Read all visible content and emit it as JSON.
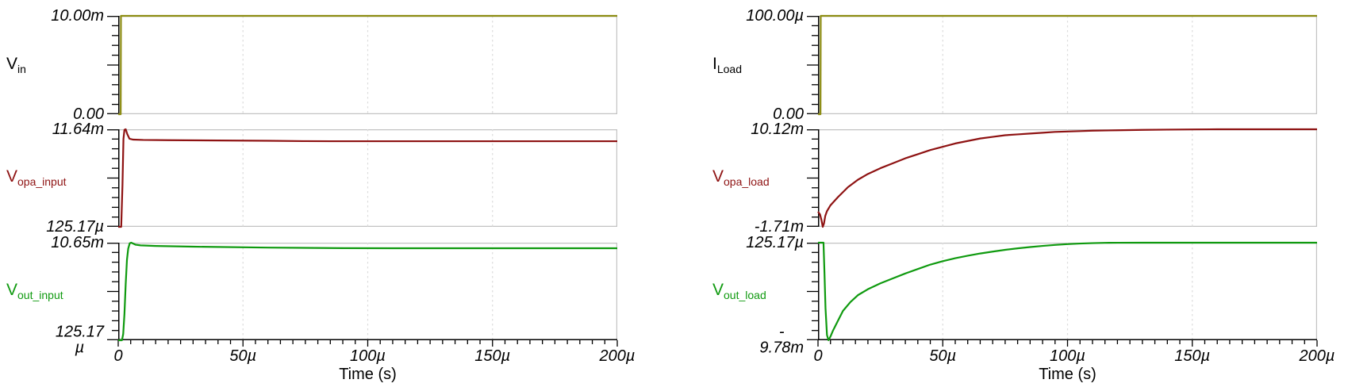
{
  "page": {
    "background": "#ffffff"
  },
  "colors": {
    "border_gray": "#c2c2c2",
    "grid_gray": "#dcdcdc",
    "axis_black": "#000000",
    "trace_olive": "#8c8c12",
    "trace_dark_red": "#8e1212",
    "trace_green": "#0f9a0f"
  },
  "axis": {
    "xlabel": "Time (s)",
    "x_tick_labels": [
      "0",
      "50µ",
      "100µ",
      "150µ",
      "200µ"
    ],
    "xlim": [
      0,
      0.0002
    ],
    "grid": true,
    "legend": "none"
  },
  "chart_data": [
    {
      "id": "vin",
      "type": "line",
      "column": "left",
      "row": 0,
      "signal": {
        "base": "V",
        "sub": "in"
      },
      "label_color": "#000000",
      "trace_color": "#8c8c12",
      "y_top_label": "10.00m",
      "y_bottom_label": "0.00",
      "ylim": [
        0,
        0.01
      ],
      "xlim": [
        0,
        0.0002
      ],
      "xlabel": "Time (s)",
      "points": [
        [
          0,
          0
        ],
        [
          1e-06,
          0
        ],
        [
          1.1e-06,
          0.01
        ],
        [
          0.0002,
          0.01
        ]
      ]
    },
    {
      "id": "vopa-input",
      "type": "line",
      "column": "left",
      "row": 1,
      "signal": {
        "base": "V",
        "sub": "opa_input"
      },
      "label_color": "#8e1212",
      "trace_color": "#8e1212",
      "y_top_label": "11.64m",
      "y_bottom_label": "125.17µ",
      "ylim": [
        0.00012517,
        0.01164
      ],
      "xlim": [
        0,
        0.0002
      ],
      "xlabel": "Time (s)",
      "points": [
        [
          0,
          0.00012517
        ],
        [
          1.2e-06,
          0.00012517
        ],
        [
          1.7e-06,
          0.005
        ],
        [
          2.1e-06,
          0.0105
        ],
        [
          2.5e-06,
          0.01158
        ],
        [
          3e-06,
          0.01164
        ],
        [
          3.6e-06,
          0.0111
        ],
        [
          4.5e-06,
          0.01052
        ],
        [
          6e-06,
          0.01042
        ],
        [
          1e-05,
          0.01038
        ],
        [
          2e-05,
          0.01035
        ],
        [
          4e-05,
          0.01032
        ],
        [
          6e-05,
          0.01028
        ],
        [
          7.5e-05,
          0.01024
        ],
        [
          8.5e-05,
          0.01023
        ],
        [
          0.0002,
          0.01023
        ]
      ]
    },
    {
      "id": "vout-input",
      "type": "line",
      "column": "left",
      "row": 2,
      "signal": {
        "base": "V",
        "sub": "out_input"
      },
      "label_color": "#0f9a0f",
      "trace_color": "#0f9a0f",
      "y_top_label": "10.65m",
      "y_bottom_label": "125.17\nµ",
      "ylim": [
        0.00012517,
        0.01065
      ],
      "xlim": [
        0,
        0.0002
      ],
      "xlabel": "Time (s)",
      "points": [
        [
          0,
          0.00012517
        ],
        [
          1.5e-06,
          0.00012517
        ],
        [
          2e-06,
          0.0008
        ],
        [
          2.5e-06,
          0.003
        ],
        [
          3e-06,
          0.0062
        ],
        [
          3.5e-06,
          0.0088
        ],
        [
          4e-06,
          0.01
        ],
        [
          4.6e-06,
          0.01058
        ],
        [
          5.2e-06,
          0.01065
        ],
        [
          6e-06,
          0.01055
        ],
        [
          7e-06,
          0.01043
        ],
        [
          9e-06,
          0.01036
        ],
        [
          1.5e-05,
          0.0103
        ],
        [
          3e-05,
          0.01022
        ],
        [
          6e-05,
          0.01012
        ],
        [
          9e-05,
          0.01006
        ],
        [
          0.00011,
          0.01005
        ],
        [
          0.0002,
          0.01005
        ]
      ]
    },
    {
      "id": "iload",
      "type": "line",
      "column": "right",
      "row": 0,
      "signal": {
        "base": "I",
        "sub": "Load"
      },
      "label_color": "#000000",
      "trace_color": "#8c8c12",
      "y_top_label": "100.00µ",
      "y_bottom_label": "0.00",
      "ylim": [
        0,
        0.0001
      ],
      "xlim": [
        0,
        0.0002
      ],
      "xlabel": "Time (s)",
      "points": [
        [
          0,
          0
        ],
        [
          1e-06,
          0
        ],
        [
          1.1e-06,
          0.0001
        ],
        [
          0.0002,
          0.0001
        ]
      ]
    },
    {
      "id": "vopa-load",
      "type": "line",
      "column": "right",
      "row": 1,
      "signal": {
        "base": "V",
        "sub": "opa_load"
      },
      "label_color": "#8e1212",
      "trace_color": "#8e1212",
      "y_top_label": "10.12m",
      "y_bottom_label": "-1.71m",
      "ylim": [
        -0.00171,
        0.01012
      ],
      "xlim": [
        0,
        0.0002
      ],
      "xlabel": "Time (s)",
      "points": [
        [
          0,
          0.00013
        ],
        [
          8e-07,
          -0.0002
        ],
        [
          1.4e-06,
          -0.0009
        ],
        [
          1.9e-06,
          -0.00171
        ],
        [
          2.4e-06,
          -0.0013
        ],
        [
          2.9e-06,
          -0.0004
        ],
        [
          3.6e-06,
          0.0002
        ],
        [
          5e-06,
          0.0009
        ],
        [
          8e-06,
          0.0019
        ],
        [
          1.2e-05,
          0.0031
        ],
        [
          1.6e-05,
          0.004
        ],
        [
          2e-05,
          0.0047
        ],
        [
          2.5e-05,
          0.0054
        ],
        [
          3e-05,
          0.006
        ],
        [
          3.5e-05,
          0.0066
        ],
        [
          4e-05,
          0.0071
        ],
        [
          4.5e-05,
          0.0076
        ],
        [
          5e-05,
          0.008
        ],
        [
          5.5e-05,
          0.0084
        ],
        [
          6e-05,
          0.0087
        ],
        [
          6.5e-05,
          0.009
        ],
        [
          7e-05,
          0.0092
        ],
        [
          7.5e-05,
          0.0094
        ],
        [
          8e-05,
          0.0095
        ],
        [
          8.5e-05,
          0.0096
        ],
        [
          9e-05,
          0.0097
        ],
        [
          9.5e-05,
          0.0098
        ],
        [
          0.0001,
          0.00985
        ],
        [
          0.000105,
          0.0099
        ],
        [
          0.00011,
          0.00995
        ],
        [
          0.00012,
          0.01
        ],
        [
          0.00013,
          0.01005
        ],
        [
          0.00014,
          0.01008
        ],
        [
          0.00015,
          0.0101
        ],
        [
          0.00016,
          0.01012
        ],
        [
          0.0002,
          0.01012
        ]
      ]
    },
    {
      "id": "vout-load",
      "type": "line",
      "column": "right",
      "row": 2,
      "signal": {
        "base": "V",
        "sub": "out_load"
      },
      "label_color": "#0f9a0f",
      "trace_color": "#0f9a0f",
      "y_top_label": "125.17µ",
      "y_bottom_label": "-\n9.78m",
      "ylim": [
        -0.00978,
        0.00012517
      ],
      "xlim": [
        0,
        0.0002
      ],
      "xlabel": "Time (s)",
      "points": [
        [
          0,
          0.00012517
        ],
        [
          2.2e-06,
          0.00012517
        ],
        [
          2.6e-06,
          -0.003
        ],
        [
          3e-06,
          -0.0065
        ],
        [
          3.6e-06,
          -0.00925
        ],
        [
          4.2e-06,
          -0.00978
        ],
        [
          5e-06,
          -0.0094
        ],
        [
          6e-06,
          -0.0088
        ],
        [
          8e-06,
          -0.0078
        ],
        [
          1e-05,
          -0.0068
        ],
        [
          1.3e-05,
          -0.0059
        ],
        [
          1.6e-05,
          -0.0052
        ],
        [
          2e-05,
          -0.0046
        ],
        [
          2.5e-05,
          -0.004
        ],
        [
          3e-05,
          -0.0035
        ],
        [
          3.5e-05,
          -0.003
        ],
        [
          4e-05,
          -0.00255
        ],
        [
          4.5e-05,
          -0.0021
        ],
        [
          5e-05,
          -0.00175
        ],
        [
          5.5e-05,
          -0.00145
        ],
        [
          6e-05,
          -0.0012
        ],
        [
          6.5e-05,
          -0.00097
        ],
        [
          7e-05,
          -0.00078
        ],
        [
          7.5e-05,
          -0.0006
        ],
        [
          8e-05,
          -0.00045
        ],
        [
          8.5e-05,
          -0.00032
        ],
        [
          9e-05,
          -0.0002
        ],
        [
          9.5e-05,
          -0.0001
        ],
        [
          0.0001,
          -2e-05
        ],
        [
          0.000105,
          4e-05
        ],
        [
          0.00011,
          8e-05
        ],
        [
          0.000115,
          0.00011
        ],
        [
          0.00012,
          0.000122
        ],
        [
          0.00013,
          0.00012517
        ],
        [
          0.0002,
          0.00012517
        ]
      ]
    }
  ]
}
